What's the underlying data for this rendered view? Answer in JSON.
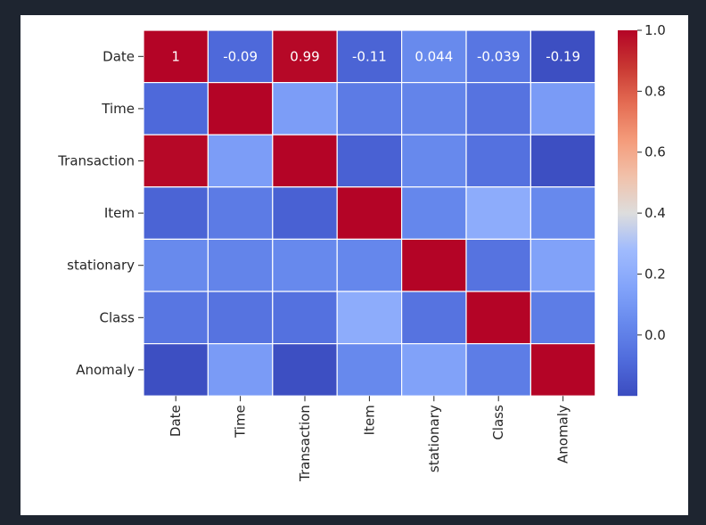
{
  "chart_data": {
    "type": "heatmap",
    "title": "",
    "xlabel": "",
    "ylabel": "",
    "colormap": "coolwarm",
    "vmin": -0.2,
    "vmax": 1.0,
    "rows": [
      "Date",
      "Time",
      "Transaction",
      "Item",
      "stationary",
      "Class",
      "Anomaly"
    ],
    "columns": [
      "Date",
      "Time",
      "Transaction",
      "Item",
      "stationary",
      "Class",
      "Anomaly"
    ],
    "values": [
      [
        1,
        -0.09,
        0.99,
        -0.11,
        0.044,
        -0.039,
        -0.19
      ],
      [
        -0.09,
        1,
        0.13,
        -0.02,
        0.02,
        -0.05,
        0.12
      ],
      [
        0.99,
        0.13,
        1,
        -0.12,
        0.04,
        -0.06,
        -0.19
      ],
      [
        -0.11,
        -0.02,
        -0.12,
        1,
        0.03,
        0.2,
        0.04
      ],
      [
        0.044,
        0.02,
        0.04,
        0.03,
        1,
        -0.05,
        0.15
      ],
      [
        -0.039,
        -0.05,
        -0.06,
        0.2,
        -0.05,
        1,
        -0.01
      ],
      [
        -0.19,
        0.12,
        -0.19,
        0.04,
        0.15,
        -0.01,
        1
      ]
    ],
    "annotations": {
      "row": 0,
      "labels": [
        "1",
        "-0.09",
        "0.99",
        "-0.11",
        "0.044",
        "-0.039",
        "-0.19"
      ]
    },
    "colorbar": {
      "ticks": [
        1.0,
        0.8,
        0.6,
        0.4,
        0.2,
        0.0
      ],
      "tick_labels": [
        "1.0",
        "0.8",
        "0.6",
        "0.4",
        "0.2",
        "0.0"
      ]
    },
    "grid_lines": true,
    "grid_color": "#ffffff"
  }
}
